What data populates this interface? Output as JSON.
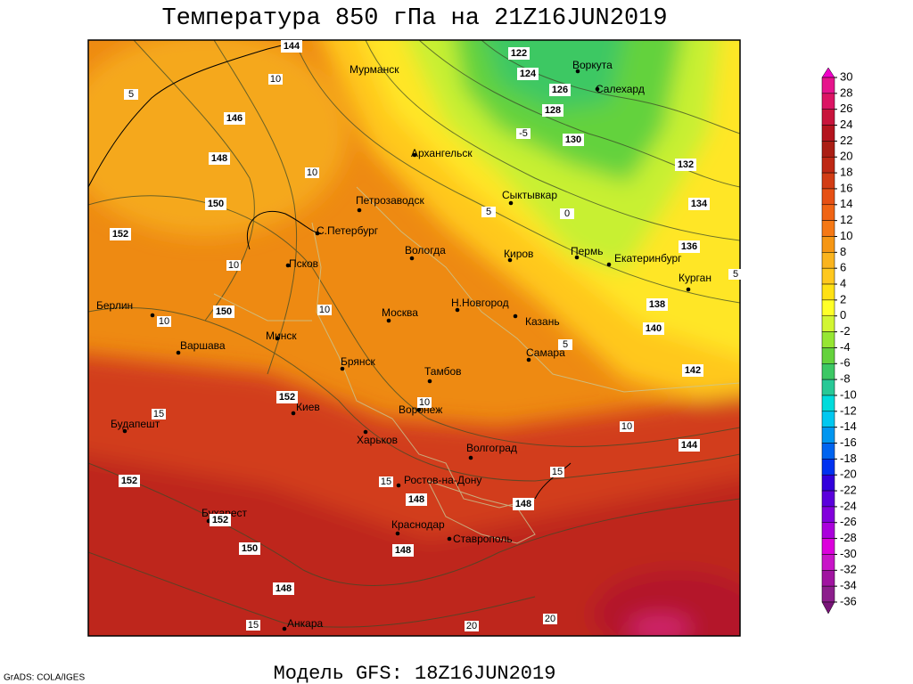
{
  "title": "Температура 850 гПа на 21Z16JUN2019",
  "footer": "Модель GFS: 18Z16JUN2019",
  "credit": "GrADS: COLA/IGES",
  "colorbar": {
    "levels": [
      30,
      28,
      26,
      24,
      22,
      20,
      18,
      16,
      14,
      12,
      10,
      8,
      6,
      4,
      2,
      0,
      -2,
      -4,
      -6,
      -8,
      -10,
      -12,
      -14,
      -16,
      -18,
      -20,
      -22,
      -24,
      -26,
      -28,
      -30,
      -32,
      -34,
      -36
    ],
    "colors": [
      "#f000c8",
      "#e6148c",
      "#dc1464",
      "#c8143c",
      "#b4141e",
      "#aa1e14",
      "#be2814",
      "#d23c14",
      "#e65014",
      "#f06414",
      "#f57814",
      "#f59614",
      "#fab41e",
      "#ffc81e",
      "#ffe114",
      "#ffff28",
      "#d2f532",
      "#96e632",
      "#64d23c",
      "#3cc864",
      "#28c896",
      "#00dcdc",
      "#00c8f0",
      "#0096f0",
      "#0064f0",
      "#0032f0",
      "#3200dc",
      "#5a00dc",
      "#8200dc",
      "#aa00dc",
      "#dc00dc",
      "#c814c8",
      "#a014a0",
      "#8c1e8c",
      "#781478"
    ]
  },
  "cities": [
    "Мурманск",
    "Воркута",
    "Салехард",
    "Архангельск",
    "Сыктывкар",
    "Петрозаводск",
    "С.Петербург",
    "Вологда",
    "Киров",
    "Пермь",
    "Екатеринбург",
    "Курган",
    "Псков",
    "Н.Новгород",
    "Казань",
    "Москва",
    "Берлин",
    "Минск",
    "Варшава",
    "Брянск",
    "Тамбов",
    "Самара",
    "Киев",
    "Воронеж",
    "Будапешт",
    "Харьков",
    "Волгоград",
    "Ростов-на-Дону",
    "Бухарест",
    "Краснодар",
    "Ставрополь",
    "Анкара"
  ],
  "height_labels": [
    144,
    122,
    124,
    126,
    128,
    130,
    132,
    134,
    136,
    138,
    140,
    142,
    144,
    146,
    148,
    150,
    152,
    150,
    152,
    152,
    152,
    150,
    148,
    148,
    148,
    148
  ],
  "temp_labels": [
    5,
    10,
    10,
    5,
    0,
    -5,
    10,
    10,
    10,
    5,
    10,
    10,
    15,
    15,
    15,
    15,
    20,
    20,
    5
  ]
}
